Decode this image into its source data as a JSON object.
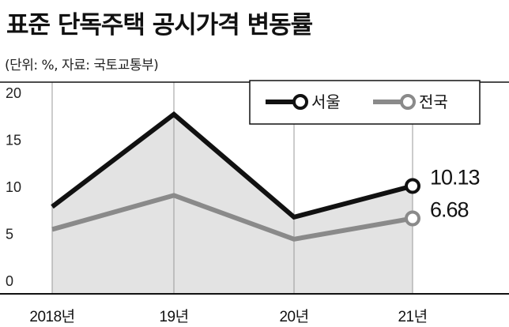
{
  "title": "표준 단독주택 공시가격 변동률",
  "subtitle": "(단위: %, 자료: 국토교통부)",
  "chart_data": {
    "type": "line",
    "title": "표준 단독주택 공시가격 변동률",
    "categories": [
      "2018년",
      "19년",
      "20년",
      "21년"
    ],
    "series": [
      {
        "name": "서울",
        "values": [
          7.92,
          17.75,
          6.82,
          10.13
        ],
        "color": "#111111"
      },
      {
        "name": "전국",
        "values": [
          5.51,
          9.13,
          4.47,
          6.68
        ],
        "color": "#8a8a8a"
      }
    ],
    "data_labels": [
      {
        "series": "서울",
        "category": "21년",
        "text": "10.13"
      },
      {
        "series": "전국",
        "category": "21년",
        "text": "6.68"
      }
    ],
    "y_ticks": [
      "0",
      "5",
      "10",
      "15",
      "20"
    ],
    "ylim": [
      0,
      20
    ],
    "xlabel": "",
    "ylabel": "",
    "grid": false,
    "legend_position": "top-right",
    "area_fill_color": "#e3e3e3"
  }
}
